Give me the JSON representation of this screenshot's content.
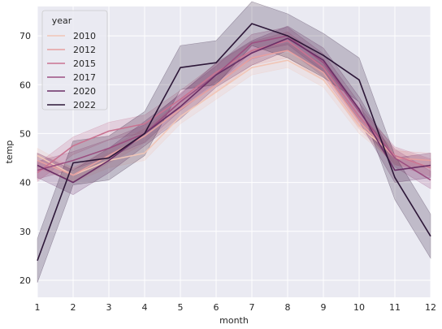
{
  "chart_data": {
    "type": "line",
    "xlabel": "month",
    "ylabel": "temp",
    "xlim": [
      1,
      12
    ],
    "ylim": [
      16.5,
      76
    ],
    "x_ticks": [
      1,
      2,
      3,
      4,
      5,
      6,
      7,
      8,
      9,
      10,
      11,
      12
    ],
    "y_ticks": [
      20,
      30,
      40,
      50,
      60,
      70
    ],
    "grid": true,
    "legend": {
      "title": "year",
      "placement": "top-left"
    },
    "x": [
      1,
      2,
      3,
      4,
      5,
      6,
      7,
      8,
      9,
      10,
      11,
      12
    ],
    "series": [
      {
        "name": "2010",
        "color": "#f1c6b7",
        "values": [
          45.5,
          41.5,
          44.5,
          46,
          53.5,
          58.5,
          63.5,
          65,
          61,
          51.5,
          45.5,
          43
        ],
        "ci_half": 1.5
      },
      {
        "name": "2012",
        "color": "#e6a0a0",
        "values": [
          44.5,
          41.5,
          45.5,
          49.5,
          55,
          60,
          65.5,
          67,
          62.5,
          52.5,
          45,
          44.5
        ],
        "ci_half": 1.5
      },
      {
        "name": "2015",
        "color": "#c97291",
        "values": [
          42,
          47.5,
          50.5,
          52,
          57,
          62.5,
          67,
          69,
          63.5,
          53.5,
          45.5,
          43
        ],
        "ci_half": 1.8
      },
      {
        "name": "2017",
        "color": "#9c4f81",
        "values": [
          42.5,
          44.5,
          47,
          50,
          56.5,
          62,
          68.5,
          70,
          64.5,
          54.5,
          45,
          40.5
        ],
        "ci_half": 1.8
      },
      {
        "name": "2020",
        "color": "#6a2e66",
        "values": [
          43.5,
          40,
          44.5,
          50,
          55.5,
          62,
          66.5,
          69.5,
          65,
          55,
          42.5,
          43.5
        ],
        "ci_half": 2.5
      },
      {
        "name": "2022",
        "color": "#2d1738",
        "values": [
          24,
          44,
          45,
          50,
          63.5,
          64.5,
          72.5,
          70,
          66,
          61,
          41,
          29
        ],
        "ci_half": 4.5
      }
    ],
    "background_color": "#eaeaf2",
    "grid_color": "#ffffff"
  }
}
